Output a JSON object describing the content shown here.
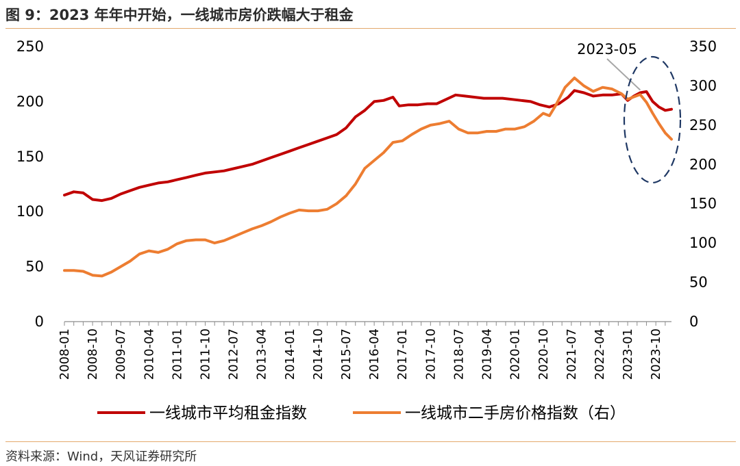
{
  "title": "图 9：2023 年年中开始，一线城市房价跌幅大于租金",
  "source": "资料来源：Wind，天风证券研究所",
  "colors": {
    "rent": "#C00000",
    "price": "#ED7D31",
    "rule": "#E3A86B",
    "ellipse": "#1F3864",
    "pointer": "#A6A6A6"
  },
  "chart_data": {
    "type": "line",
    "x_ticks": [
      "2008-01",
      "2008-10",
      "2009-07",
      "2010-04",
      "2011-01",
      "2011-10",
      "2012-07",
      "2013-04",
      "2014-01",
      "2014-10",
      "2015-07",
      "2016-04",
      "2017-01",
      "2017-10",
      "2018-07",
      "2019-04",
      "2020-01",
      "2020-10",
      "2021-07",
      "2022-04",
      "2023-01",
      "2023-10"
    ],
    "x_range": [
      "2008-01",
      "2024-03"
    ],
    "y_left": {
      "range": [
        0,
        250
      ],
      "ticks": [
        0,
        50,
        100,
        150,
        200,
        250
      ]
    },
    "y_right": {
      "range": [
        0,
        350
      ],
      "ticks": [
        0,
        50,
        100,
        150,
        200,
        250,
        300,
        350
      ]
    },
    "legend": {
      "position": "bottom",
      "labels": [
        "一线城市平均租金指数",
        "一线城市二手房价格指数（右）"
      ]
    },
    "annotation": {
      "text": "2023-05",
      "target": "2023-05"
    },
    "series": [
      {
        "name": "一线城市平均租金指数",
        "axis": "left",
        "points": [
          [
            "2008-01",
            115
          ],
          [
            "2008-04",
            118
          ],
          [
            "2008-07",
            117
          ],
          [
            "2008-10",
            111
          ],
          [
            "2009-01",
            110
          ],
          [
            "2009-04",
            112
          ],
          [
            "2009-07",
            116
          ],
          [
            "2009-10",
            119
          ],
          [
            "2010-01",
            122
          ],
          [
            "2010-04",
            124
          ],
          [
            "2010-07",
            126
          ],
          [
            "2010-10",
            127
          ],
          [
            "2011-01",
            129
          ],
          [
            "2011-04",
            131
          ],
          [
            "2011-07",
            133
          ],
          [
            "2011-10",
            135
          ],
          [
            "2012-01",
            136
          ],
          [
            "2012-04",
            137
          ],
          [
            "2012-07",
            139
          ],
          [
            "2012-10",
            141
          ],
          [
            "2013-01",
            143
          ],
          [
            "2013-04",
            146
          ],
          [
            "2013-07",
            149
          ],
          [
            "2013-10",
            152
          ],
          [
            "2014-01",
            155
          ],
          [
            "2014-04",
            158
          ],
          [
            "2014-07",
            161
          ],
          [
            "2014-10",
            164
          ],
          [
            "2015-01",
            167
          ],
          [
            "2015-04",
            170
          ],
          [
            "2015-07",
            176
          ],
          [
            "2015-10",
            186
          ],
          [
            "2016-01",
            192
          ],
          [
            "2016-04",
            200
          ],
          [
            "2016-07",
            201
          ],
          [
            "2016-10",
            204
          ],
          [
            "2016-12",
            196
          ],
          [
            "2017-03",
            197
          ],
          [
            "2017-06",
            197
          ],
          [
            "2017-09",
            198
          ],
          [
            "2017-12",
            198
          ],
          [
            "2018-03",
            202
          ],
          [
            "2018-06",
            206
          ],
          [
            "2018-09",
            205
          ],
          [
            "2018-12",
            204
          ],
          [
            "2019-03",
            203
          ],
          [
            "2019-06",
            203
          ],
          [
            "2019-09",
            203
          ],
          [
            "2019-12",
            202
          ],
          [
            "2020-03",
            201
          ],
          [
            "2020-06",
            200
          ],
          [
            "2020-09",
            197
          ],
          [
            "2020-12",
            195
          ],
          [
            "2021-03",
            198
          ],
          [
            "2021-06",
            204
          ],
          [
            "2021-08",
            210
          ],
          [
            "2021-11",
            208
          ],
          [
            "2022-02",
            205
          ],
          [
            "2022-05",
            206
          ],
          [
            "2022-08",
            206
          ],
          [
            "2022-11",
            207
          ],
          [
            "2023-01",
            201
          ],
          [
            "2023-03",
            205
          ],
          [
            "2023-05",
            208
          ],
          [
            "2023-07",
            209
          ],
          [
            "2023-09",
            200
          ],
          [
            "2023-11",
            195
          ],
          [
            "2024-01",
            192
          ],
          [
            "2024-03",
            193
          ]
        ]
      },
      {
        "name": "一线城市二手房价格指数（右）",
        "axis": "right",
        "points": [
          [
            "2008-01",
            65
          ],
          [
            "2008-04",
            65
          ],
          [
            "2008-07",
            64
          ],
          [
            "2008-10",
            59
          ],
          [
            "2009-01",
            58
          ],
          [
            "2009-04",
            63
          ],
          [
            "2009-07",
            70
          ],
          [
            "2009-10",
            77
          ],
          [
            "2010-01",
            86
          ],
          [
            "2010-04",
            90
          ],
          [
            "2010-07",
            88
          ],
          [
            "2010-10",
            92
          ],
          [
            "2011-01",
            99
          ],
          [
            "2011-04",
            103
          ],
          [
            "2011-07",
            104
          ],
          [
            "2011-10",
            104
          ],
          [
            "2012-01",
            100
          ],
          [
            "2012-04",
            103
          ],
          [
            "2012-07",
            108
          ],
          [
            "2012-10",
            113
          ],
          [
            "2013-01",
            118
          ],
          [
            "2013-04",
            122
          ],
          [
            "2013-07",
            127
          ],
          [
            "2013-10",
            133
          ],
          [
            "2014-01",
            138
          ],
          [
            "2014-04",
            142
          ],
          [
            "2014-07",
            141
          ],
          [
            "2014-10",
            141
          ],
          [
            "2015-01",
            143
          ],
          [
            "2015-04",
            150
          ],
          [
            "2015-07",
            160
          ],
          [
            "2015-10",
            175
          ],
          [
            "2016-01",
            195
          ],
          [
            "2016-04",
            205
          ],
          [
            "2016-07",
            215
          ],
          [
            "2016-10",
            228
          ],
          [
            "2017-01",
            230
          ],
          [
            "2017-04",
            238
          ],
          [
            "2017-07",
            245
          ],
          [
            "2017-10",
            250
          ],
          [
            "2018-01",
            252
          ],
          [
            "2018-04",
            255
          ],
          [
            "2018-07",
            245
          ],
          [
            "2018-10",
            240
          ],
          [
            "2019-01",
            240
          ],
          [
            "2019-04",
            242
          ],
          [
            "2019-07",
            242
          ],
          [
            "2019-10",
            245
          ],
          [
            "2020-01",
            245
          ],
          [
            "2020-04",
            248
          ],
          [
            "2020-07",
            255
          ],
          [
            "2020-10",
            265
          ],
          [
            "2020-12",
            262
          ],
          [
            "2021-02",
            275
          ],
          [
            "2021-05",
            298
          ],
          [
            "2021-08",
            310
          ],
          [
            "2021-11",
            300
          ],
          [
            "2022-02",
            293
          ],
          [
            "2022-05",
            298
          ],
          [
            "2022-08",
            296
          ],
          [
            "2022-11",
            290
          ],
          [
            "2023-01",
            283
          ],
          [
            "2023-03",
            286
          ],
          [
            "2023-05",
            289
          ],
          [
            "2023-07",
            279
          ],
          [
            "2023-09",
            265
          ],
          [
            "2023-11",
            252
          ],
          [
            "2024-01",
            240
          ],
          [
            "2024-03",
            232
          ]
        ]
      }
    ]
  }
}
